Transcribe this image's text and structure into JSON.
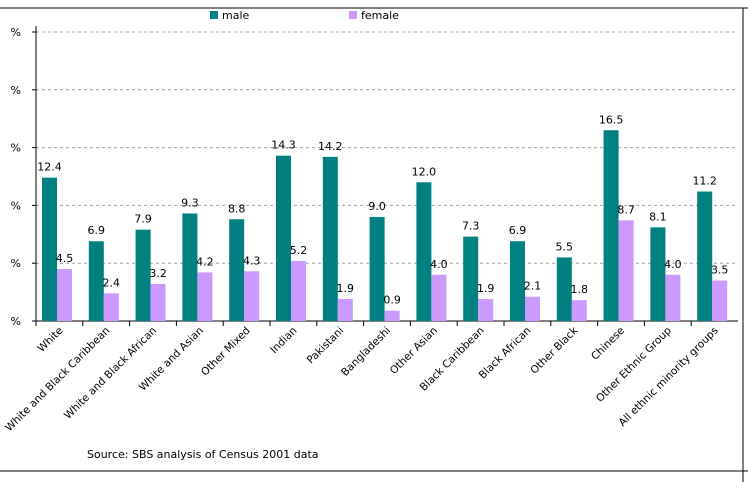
{
  "chart_data": {
    "type": "bar",
    "categories": [
      "White",
      "White and Black Caribbean",
      "White and Black African",
      "White and Asian",
      "Other Mixed",
      "Indian",
      "Pakistani",
      "Bangladeshi",
      "Other Asian",
      "Black Caribbean",
      "Black African",
      "Other Black",
      "Chinese",
      "Other Ethnic Group",
      "All ethnic minority groups"
    ],
    "series": [
      {
        "name": "male",
        "values": [
          12.4,
          6.9,
          7.9,
          9.3,
          8.8,
          14.3,
          14.2,
          9.0,
          12.0,
          7.3,
          6.9,
          5.5,
          16.5,
          8.1,
          11.2
        ],
        "color": "#008080"
      },
      {
        "name": "female",
        "values": [
          4.5,
          2.4,
          3.2,
          4.2,
          4.3,
          5.2,
          1.9,
          0.9,
          4.0,
          1.9,
          2.1,
          1.8,
          8.7,
          4.0,
          3.5
        ],
        "color": "#cc99ff"
      }
    ],
    "value_labels": {
      "male": [
        "12.4",
        "6.9",
        "7.9",
        "9.3",
        "8.8",
        "14.3",
        "14.2",
        "9.0",
        "12.0",
        "7.3",
        "6.9",
        "5.5",
        "16.5",
        "8.1",
        "11.2"
      ],
      "female": [
        "4.5",
        "2.4",
        "3.2",
        "4.2",
        "4.3",
        "5.2",
        "1.9",
        "0.9",
        "4.0",
        "1.9",
        "2.1",
        "1.8",
        "8.7",
        "4.0",
        "3.5"
      ]
    },
    "ylim": [
      0,
      25
    ],
    "yticks": [
      0,
      5,
      10,
      15,
      20,
      25
    ],
    "ytick_labels": [
      "%",
      "%",
      "%",
      "%",
      "%",
      "%"
    ],
    "grid": true,
    "legend_position": "top-center",
    "annotation": "Source: SBS analysis of Census 2001 data"
  }
}
